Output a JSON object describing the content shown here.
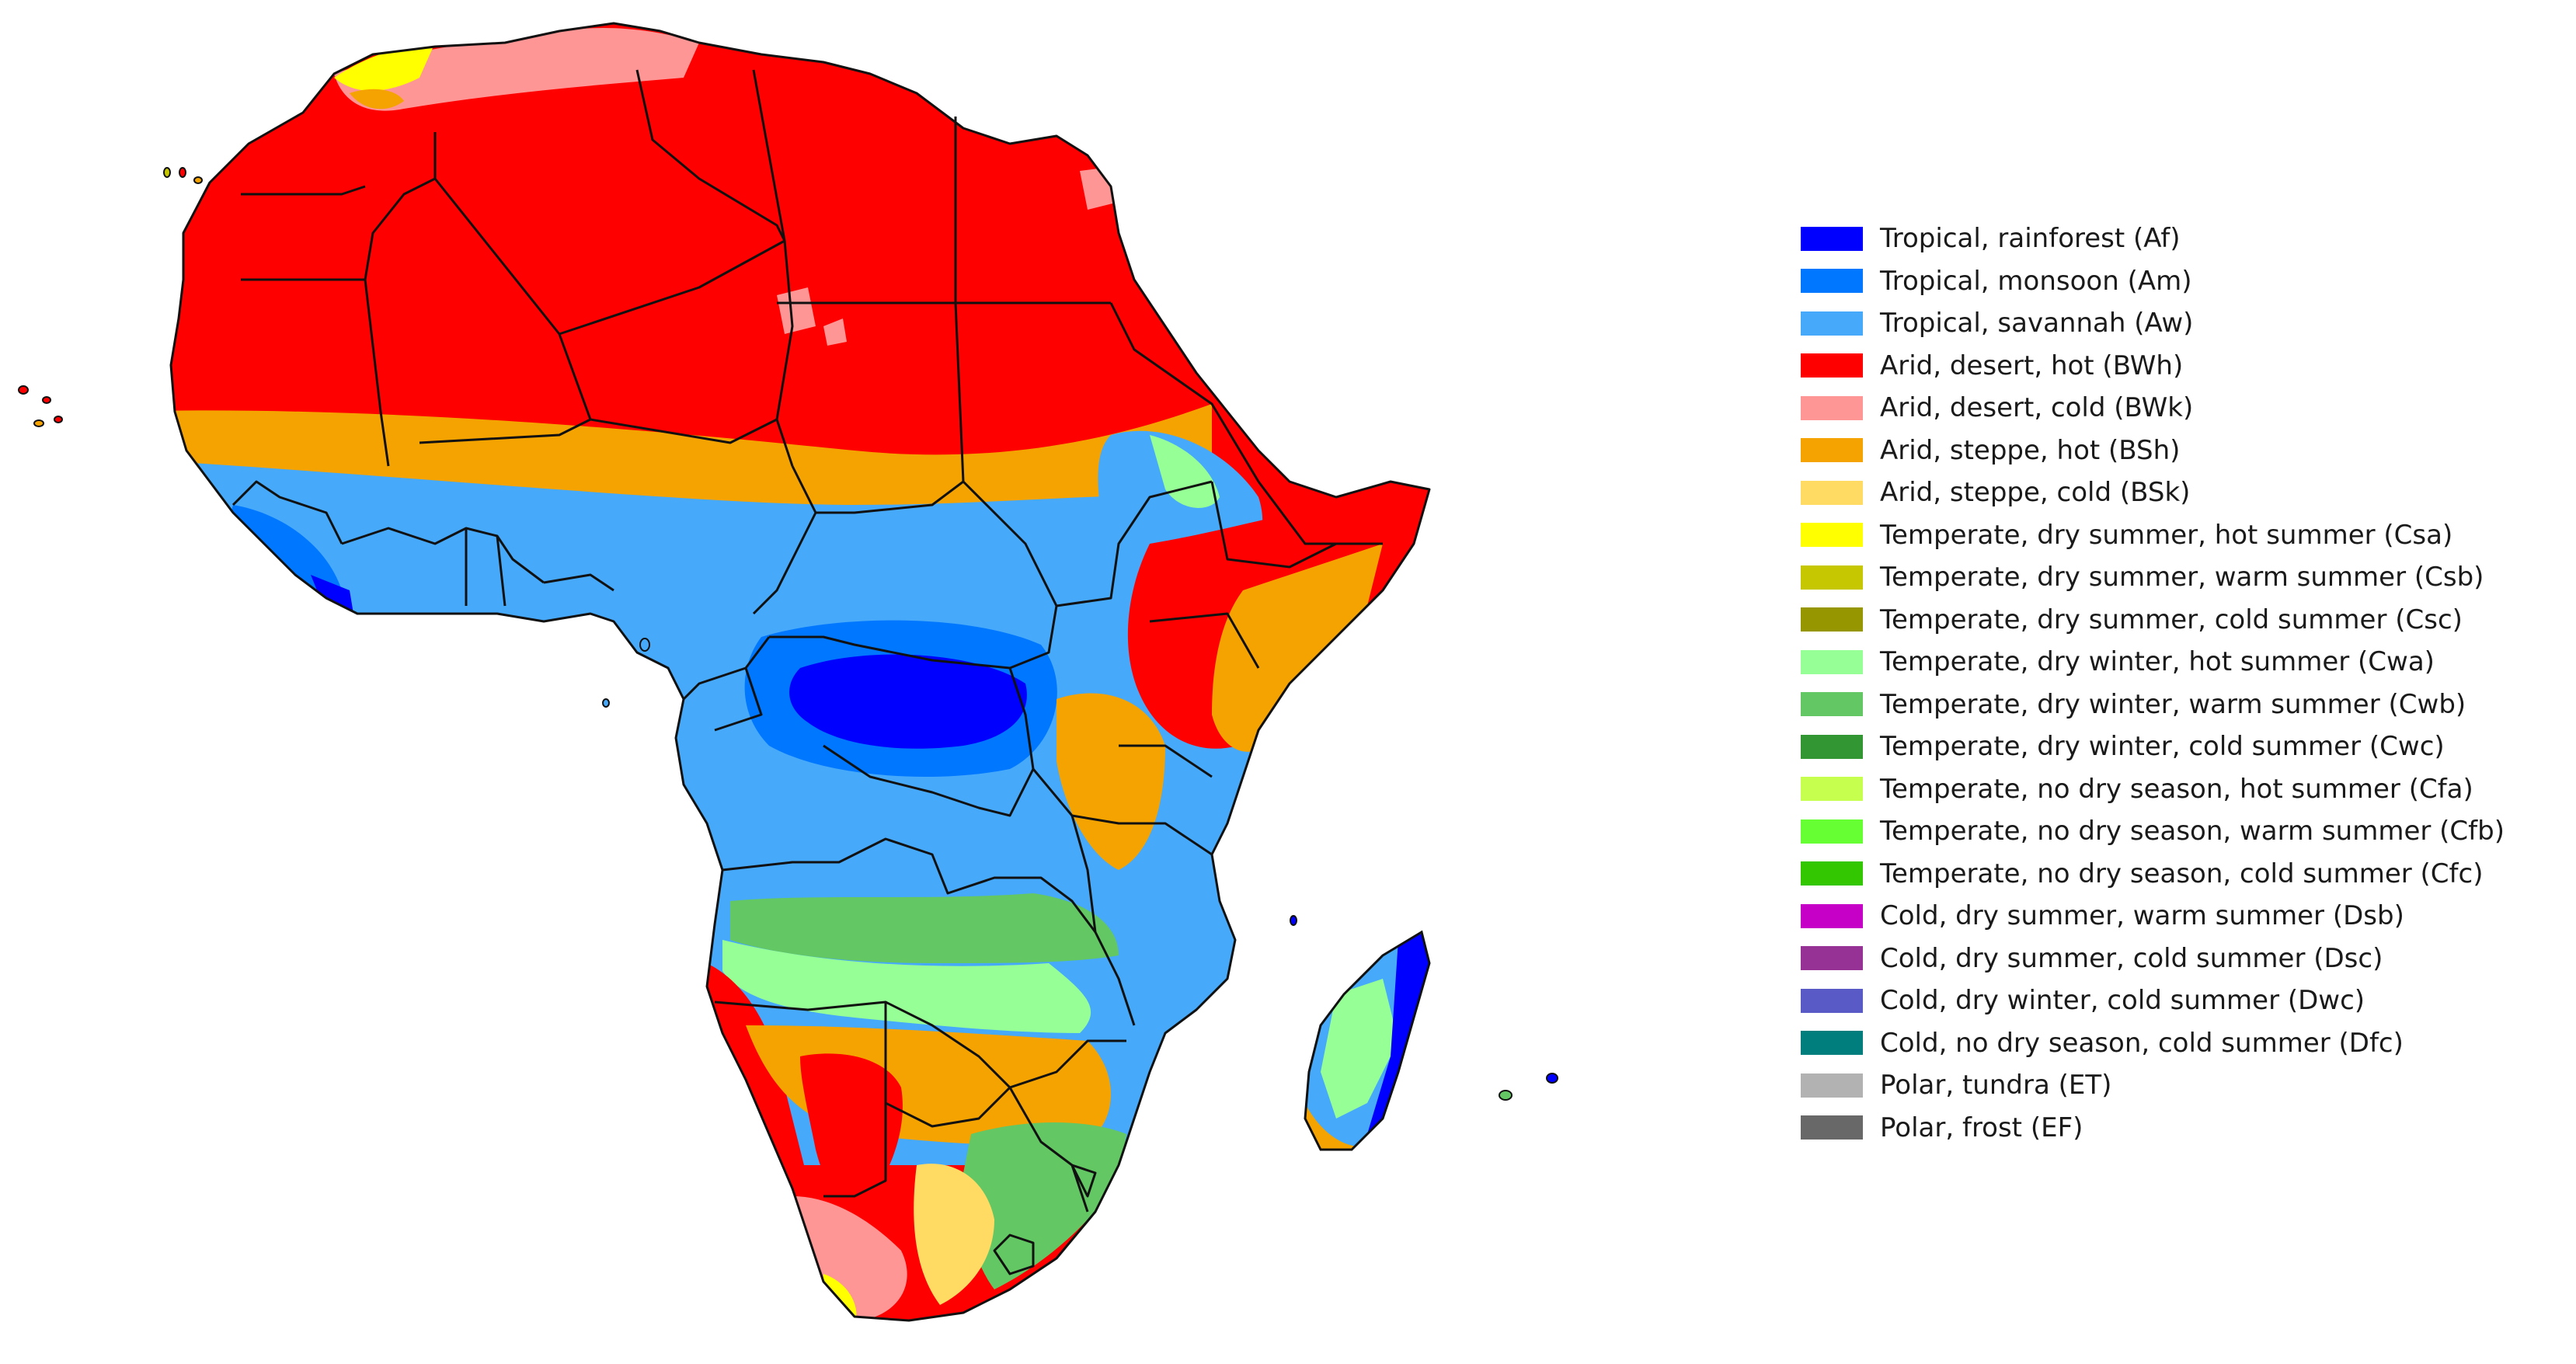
{
  "legend": {
    "items": [
      {
        "label": "Tropical, rainforest (Af)",
        "color": "#0000fe"
      },
      {
        "label": "Tropical, monsoon (Am)",
        "color": "#0077ff"
      },
      {
        "label": "Tropical, savannah (Aw)",
        "color": "#46a9fa"
      },
      {
        "label": "Arid, desert, hot (BWh)",
        "color": "#fe0000"
      },
      {
        "label": "Arid, desert, cold (BWk)",
        "color": "#fe9695"
      },
      {
        "label": "Arid, steppe, hot (BSh)",
        "color": "#f5a301"
      },
      {
        "label": "Arid, steppe, cold (BSk)",
        "color": "#ffdb63"
      },
      {
        "label": "Temperate, dry summer, hot summer (Csa)",
        "color": "#ffff00"
      },
      {
        "label": "Temperate, dry summer, warm summer (Csb)",
        "color": "#c6c700"
      },
      {
        "label": "Temperate, dry summer, cold summer (Csc)",
        "color": "#969600"
      },
      {
        "label": "Temperate, dry winter, hot summer (Cwa)",
        "color": "#96ff96"
      },
      {
        "label": "Temperate, dry winter, warm summer (Cwb)",
        "color": "#63c764"
      },
      {
        "label": "Temperate, dry winter, cold summer (Cwc)",
        "color": "#329633"
      },
      {
        "label": "Temperate, no dry season, hot summer (Cfa)",
        "color": "#c6ff4e"
      },
      {
        "label": "Temperate, no dry season, warm summer (Cfb)",
        "color": "#66ff33"
      },
      {
        "label": "Temperate, no dry season, cold summer (Cfc)",
        "color": "#33c701"
      },
      {
        "label": "Cold, dry summer, warm summer (Dsb)",
        "color": "#c600c7"
      },
      {
        "label": "Cold, dry summer, cold summer (Dsc)",
        "color": "#963295"
      },
      {
        "label": "Cold, dry winter, cold summer (Dwc)",
        "color": "#5a5ac7"
      },
      {
        "label": "Cold, no dry season, cold summer (Dfc)",
        "color": "#007d7d"
      },
      {
        "label": "Polar, tundra (ET)",
        "color": "#b2b2b2"
      },
      {
        "label": "Polar, frost (EF)",
        "color": "#686868"
      }
    ]
  },
  "map": {
    "colors": {
      "desert_hot": "#fe0000",
      "desert_cold": "#fe9695",
      "steppe_hot": "#f5a301",
      "steppe_cold": "#ffdb63",
      "savannah": "#46a9fa",
      "monsoon": "#0077ff",
      "rainforest": "#0000fe",
      "csa": "#ffff00",
      "csb": "#c6c700",
      "cwa": "#96ff96",
      "cwb": "#63c764",
      "cfb": "#66ff33",
      "border": "#111111"
    }
  }
}
